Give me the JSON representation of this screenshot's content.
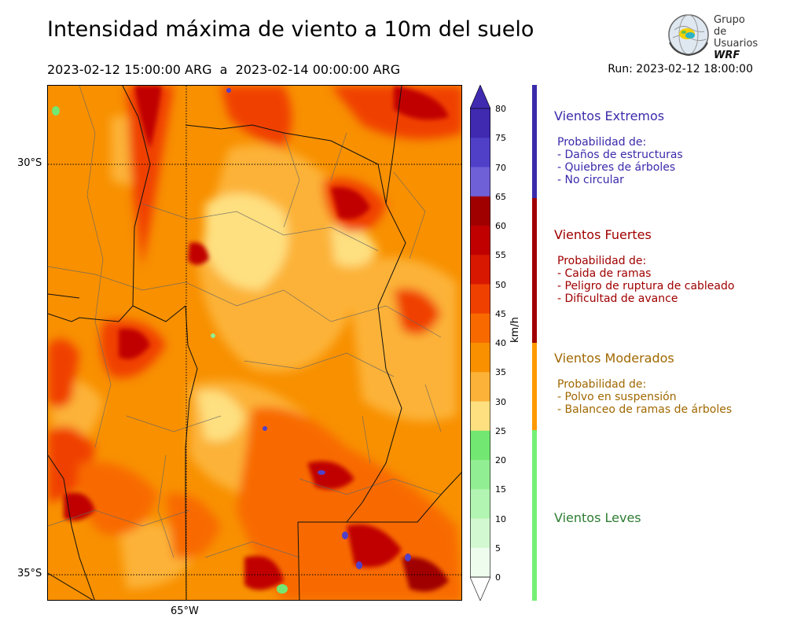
{
  "title": "Intensidad máxima de viento a 10m del suelo",
  "period": "2023-02-12 15:00:00 ARG  a  2023-02-14 00:00:00 ARG",
  "run": "Run: 2023-02-12 18:00:00",
  "logo": {
    "line1": "Grupo de",
    "line2": "Usuarios",
    "line3": "WRF"
  },
  "map": {
    "lat_labels": [
      "30°S",
      "35°S"
    ],
    "lon_labels": [
      "65°W"
    ]
  },
  "colorbar": {
    "unit": "km/h",
    "ticks": [
      "80",
      "75",
      "70",
      "65",
      "60",
      "55",
      "50",
      "45",
      "40",
      "35",
      "30",
      "25",
      "20",
      "15",
      "10",
      "5",
      "0"
    ],
    "colors": [
      "#3f2ab0",
      "#5040c8",
      "#7060d8",
      "#a00000",
      "#c00000",
      "#d81800",
      "#f04000",
      "#f86a00",
      "#f89000",
      "#fcb238",
      "#fee080",
      "#72e872",
      "#92ee92",
      "#b2f4b2",
      "#d2f8d2",
      "#eefcee"
    ]
  },
  "categories": [
    {
      "title": "Vientos Extremos",
      "color": "#3a2aaa",
      "bar_color": "#3a2aaa",
      "lines": [
        "Probabilidad de:",
        "- Daños de estructuras",
        "- Quiebres de árboles",
        "- No circular"
      ]
    },
    {
      "title": "Vientos Fuertes",
      "color": "#a00000",
      "bar_color": "#a00000",
      "lines": [
        "Probabilidad de:",
        "- Caida de ramas",
        "- Peligro de ruptura de cableado",
        "- Dificultad de avance"
      ]
    },
    {
      "title": "Vientos Moderados",
      "color": "#a06800",
      "bar_color": "#ff9a00",
      "lines": [
        "Probabilidad de:",
        "- Polvo en suspensión",
        "- Balanceo de ramas de árboles"
      ]
    },
    {
      "title": "Vientos Leves",
      "color": "#2e7d32",
      "bar_color": "#74f074",
      "lines": []
    }
  ]
}
